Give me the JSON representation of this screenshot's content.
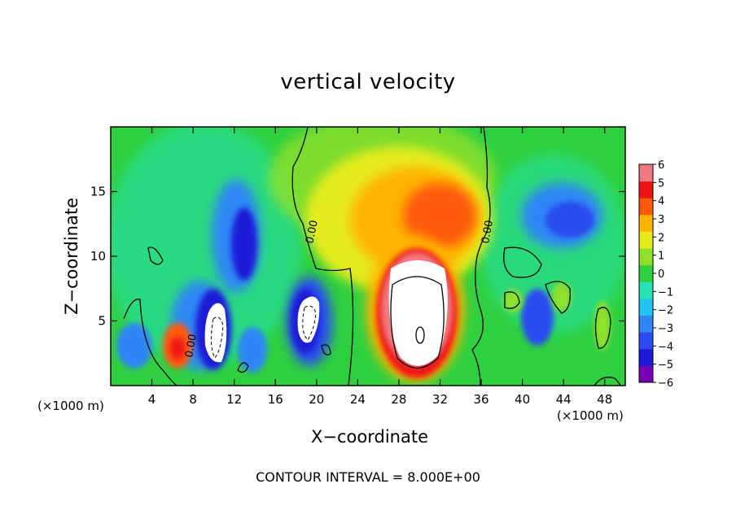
{
  "chart_data": {
    "type": "heatmap",
    "title": "vertical velocity",
    "xlabel": "X−coordinate",
    "ylabel": "Z−coordinate",
    "x_units": "(×1000 m)",
    "y_units": "(×1000 m)",
    "xlim": [
      0,
      50
    ],
    "ylim": [
      0,
      20
    ],
    "x_ticks": [
      "4",
      "8",
      "12",
      "16",
      "20",
      "24",
      "28",
      "32",
      "36",
      "40",
      "44",
      "48"
    ],
    "y_ticks": [
      "5",
      "10",
      "15"
    ],
    "colorbar": {
      "range": [
        -6,
        6
      ],
      "tick_labels": [
        "6",
        "5",
        "4",
        "3",
        "2",
        "1",
        "0",
        "−1",
        "−2",
        "−3",
        "−4",
        "−5",
        "−6"
      ],
      "colors": [
        "#7a00b8",
        "#1a1ad6",
        "#2a4cf0",
        "#2f86f5",
        "#21c3f2",
        "#25e3b6",
        "#2fd040",
        "#8fe02a",
        "#e6ec1a",
        "#ffb400",
        "#ff5a0a",
        "#f01414",
        "#f07a82"
      ]
    },
    "features": [
      {
        "type": "updraft_core",
        "x_center": 30,
        "z_center": 5,
        "peak": "> 6",
        "extent_x": [
          25,
          35
        ],
        "extent_z": [
          0.5,
          10
        ]
      },
      {
        "type": "updraft",
        "x_center": 31,
        "z_center": 13,
        "value": 4,
        "extent_x": [
          22,
          37
        ],
        "extent_z": [
          9,
          17
        ]
      },
      {
        "type": "downdraft_core",
        "x_center": 10,
        "z_center": 4,
        "peak": "< -6"
      },
      {
        "type": "downdraft_core",
        "x_center": 19,
        "z_center": 5,
        "peak": "< -6"
      },
      {
        "type": "downdraft",
        "x_center": 12.5,
        "z_center": 11,
        "value": -4
      },
      {
        "type": "downdraft",
        "x_center": 43,
        "z_center": 13,
        "value": -3
      },
      {
        "type": "downdraft",
        "x_center": 41,
        "z_center": 5,
        "value": -4
      },
      {
        "type": "updraft",
        "x_center": 7,
        "z_center": 3,
        "value": 4
      }
    ],
    "contour_labels": [
      "0.00",
      "0.00",
      "0.00"
    ],
    "contour_interval": "CONTOUR INTERVAL = 8.000E+00"
  }
}
